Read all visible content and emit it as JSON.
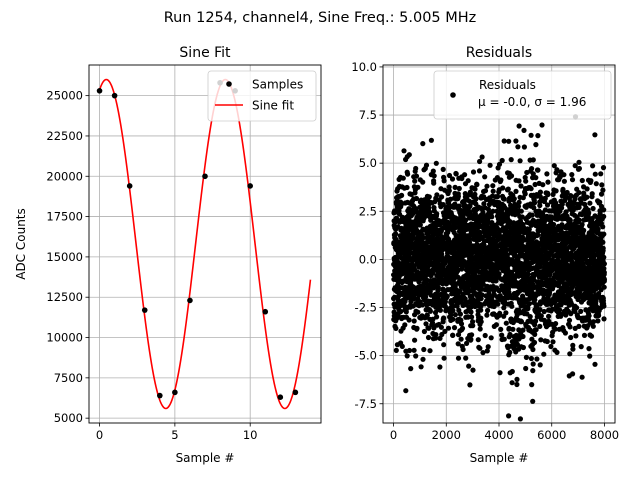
{
  "figure": {
    "suptitle": "Run 1254, channel4, Sine Freq.: 5.005 MHz"
  },
  "chart_data": [
    {
      "type": "scatter",
      "title": "Sine Fit",
      "xlabel": "Sample #",
      "ylabel": "ADC Counts",
      "xlim": [
        -0.7,
        14.7
      ],
      "ylim": [
        4700,
        26900
      ],
      "xticks": [
        0,
        5,
        10
      ],
      "yticks": [
        5000,
        7500,
        10000,
        12500,
        15000,
        17500,
        20000,
        22500,
        25000
      ],
      "grid": true,
      "legend_position": "top-right",
      "colors": {
        "samples": "#000000",
        "fit": "#ff0000"
      },
      "fit_curve": {
        "offset": 15800,
        "amplitude": 10200,
        "period": 7.9,
        "phase_peak_x": 0.45,
        "x_range": [
          0,
          14
        ]
      },
      "series": [
        {
          "name": "Samples",
          "x": [
            0,
            1,
            2,
            3,
            4,
            5,
            6,
            7,
            8,
            9,
            10,
            11,
            12,
            13
          ],
          "y": [
            25300,
            25000,
            19400,
            11700,
            6400,
            6600,
            12300,
            20000,
            25800,
            25300,
            19400,
            11600,
            6300,
            6600
          ]
        },
        {
          "name": "Sine fit"
        }
      ]
    },
    {
      "type": "scatter",
      "title": "Residuals",
      "xlabel": "Sample #",
      "ylabel": "",
      "xlim": [
        -400,
        8400
      ],
      "ylim": [
        -8.5,
        10.1
      ],
      "xticks": [
        0,
        2000,
        4000,
        6000,
        8000
      ],
      "yticks": [
        -7.5,
        -5.0,
        -2.5,
        0.0,
        2.5,
        5.0,
        7.5,
        10.0
      ],
      "grid": true,
      "legend_position": "top-right",
      "colors": {
        "points": "#000000"
      },
      "series": [
        {
          "name": "Residuals",
          "stats": "μ = -0.0, σ = 1.96",
          "n_points": 8000,
          "sigma": 1.96
        }
      ]
    }
  ]
}
